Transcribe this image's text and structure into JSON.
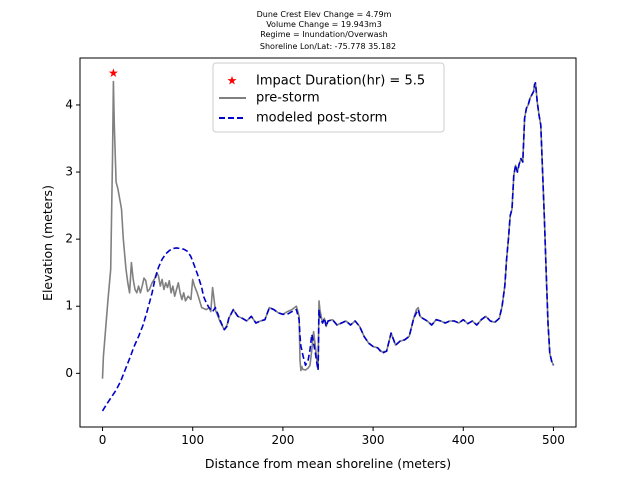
{
  "chart_data": {
    "type": "line",
    "title_lines": [
      "Dune Crest Elev Change = 4.79m",
      "Volume Change = 19.943m3",
      "Regime = Inundation/Overwash",
      "Shoreline Lon/Lat: -75.778 35.182"
    ],
    "xlabel": "Distance from mean shoreline (meters)",
    "ylabel": "Elevation (meters)",
    "xlim": [
      -25,
      525
    ],
    "ylim": [
      -0.8,
      4.7
    ],
    "xticks": [
      0,
      100,
      200,
      300,
      400,
      500
    ],
    "yticks": [
      0,
      1,
      2,
      3,
      4
    ],
    "legend_position": "upper center",
    "legend": [
      {
        "label": "Impact Duration(hr) = 5.5",
        "kind": "marker",
        "color": "#ff0000"
      },
      {
        "label": "pre-storm",
        "kind": "line",
        "color": "#808080"
      },
      {
        "label": "modeled post-storm",
        "kind": "dashed",
        "color": "#0000cc"
      }
    ],
    "marker": {
      "x": 12,
      "y": 4.47,
      "symbol": "star",
      "color": "#ff0000"
    },
    "series": [
      {
        "name": "pre-storm",
        "color": "#808080",
        "style": "solid",
        "x": [
          0,
          1,
          3,
          6,
          9,
          11,
          12,
          13,
          15,
          17,
          19,
          21,
          23,
          26,
          28,
          30,
          32,
          34,
          36,
          38,
          40,
          42,
          44,
          46,
          48,
          50,
          52,
          55,
          58,
          60,
          62,
          64,
          66,
          68,
          70,
          72,
          74,
          76,
          78,
          80,
          82,
          84,
          86,
          88,
          90,
          92,
          95,
          98,
          100,
          102,
          105,
          110,
          115,
          118,
          120,
          122,
          125,
          128,
          130,
          135,
          138,
          140,
          145,
          150,
          155,
          160,
          165,
          170,
          175,
          180,
          185,
          190,
          195,
          200,
          205,
          210,
          215,
          218,
          219,
          220,
          221,
          222,
          225,
          228,
          230,
          232,
          234,
          236,
          238,
          239,
          240,
          241,
          242,
          244,
          246,
          248,
          250,
          255,
          260,
          265,
          270,
          275,
          280,
          285,
          290,
          295,
          300,
          305,
          310,
          315,
          320,
          325,
          330,
          335,
          340,
          345,
          348,
          350,
          352,
          355,
          360,
          365,
          370,
          375,
          380,
          385,
          390,
          395,
          400,
          405,
          410,
          415,
          420,
          425,
          430,
          435,
          440,
          443,
          446,
          448,
          450,
          452,
          454,
          456,
          458,
          460,
          462,
          464,
          466,
          468,
          470,
          472,
          474,
          476,
          478,
          479,
          480,
          481,
          482,
          484,
          486,
          488,
          490,
          492,
          494,
          496,
          498,
          500
        ],
        "values": [
          -0.08,
          0.25,
          0.6,
          1.1,
          1.55,
          3.2,
          4.35,
          3.7,
          2.85,
          2.75,
          2.6,
          2.45,
          2.0,
          1.55,
          1.35,
          1.2,
          1.65,
          1.4,
          1.25,
          1.2,
          1.3,
          1.2,
          1.3,
          1.42,
          1.38,
          1.22,
          1.25,
          1.35,
          1.42,
          1.5,
          1.45,
          1.3,
          1.4,
          1.25,
          1.35,
          1.28,
          1.38,
          1.2,
          1.3,
          1.15,
          1.25,
          1.35,
          1.2,
          1.1,
          1.2,
          1.08,
          1.15,
          1.1,
          1.4,
          1.3,
          1.2,
          0.98,
          0.95,
          0.98,
          0.92,
          1.28,
          0.95,
          0.85,
          0.78,
          0.65,
          0.72,
          0.82,
          0.95,
          0.85,
          0.82,
          0.78,
          0.85,
          0.75,
          0.78,
          0.8,
          0.98,
          0.95,
          0.9,
          0.88,
          0.92,
          0.95,
          1.0,
          0.85,
          0.2,
          0.04,
          0.1,
          0.06,
          0.05,
          0.08,
          0.12,
          0.35,
          0.62,
          0.4,
          0.15,
          0.06,
          1.08,
          0.95,
          0.88,
          0.75,
          0.82,
          0.7,
          0.78,
          0.8,
          0.72,
          0.75,
          0.78,
          0.72,
          0.78,
          0.7,
          0.55,
          0.45,
          0.4,
          0.38,
          0.32,
          0.33,
          0.6,
          0.42,
          0.48,
          0.5,
          0.55,
          0.82,
          0.95,
          0.98,
          0.85,
          0.82,
          0.78,
          0.72,
          0.8,
          0.78,
          0.75,
          0.78,
          0.78,
          0.75,
          0.8,
          0.74,
          0.78,
          0.72,
          0.8,
          0.85,
          0.78,
          0.76,
          0.82,
          1.0,
          1.3,
          1.7,
          2.0,
          2.35,
          2.45,
          2.95,
          3.1,
          3.0,
          3.12,
          3.2,
          3.15,
          3.8,
          3.95,
          4.0,
          4.1,
          4.15,
          4.2,
          4.3,
          4.33,
          4.2,
          4.05,
          3.85,
          3.7,
          3.0,
          2.3,
          1.5,
          0.75,
          0.3,
          0.18,
          0.12
        ]
      },
      {
        "name": "modeled post-storm",
        "color": "#0000cc",
        "style": "dashed",
        "x": [
          0,
          5,
          10,
          15,
          20,
          25,
          30,
          35,
          40,
          45,
          50,
          55,
          58,
          62,
          66,
          70,
          74,
          78,
          82,
          86,
          90,
          94,
          98,
          102,
          106,
          110,
          112,
          115,
          118,
          120,
          122,
          125,
          128,
          130,
          135,
          138,
          140,
          145,
          150,
          155,
          160,
          165,
          170,
          175,
          180,
          185,
          190,
          195,
          200,
          205,
          210,
          215,
          218,
          219,
          220,
          221,
          222,
          225,
          228,
          230,
          232,
          234,
          236,
          238,
          239,
          240,
          241,
          242,
          244,
          246,
          248,
          250,
          255,
          260,
          265,
          270,
          275,
          280,
          285,
          290,
          295,
          300,
          305,
          310,
          315,
          320,
          325,
          330,
          335,
          340,
          345,
          348,
          350,
          352,
          355,
          360,
          365,
          370,
          375,
          380,
          385,
          390,
          395,
          400,
          405,
          410,
          415,
          420,
          425,
          430,
          435,
          440,
          443,
          446,
          448,
          450,
          452,
          454,
          456,
          458,
          460,
          462,
          464,
          466,
          468,
          470,
          472,
          474,
          476,
          478,
          479,
          480,
          481,
          482,
          484,
          486,
          488,
          490,
          492,
          494,
          496,
          498,
          500
        ],
        "values": [
          -0.56,
          -0.45,
          -0.35,
          -0.25,
          -0.12,
          0.05,
          0.22,
          0.4,
          0.55,
          0.72,
          0.95,
          1.2,
          1.4,
          1.58,
          1.7,
          1.78,
          1.83,
          1.86,
          1.87,
          1.86,
          1.85,
          1.82,
          1.74,
          1.6,
          1.45,
          1.28,
          1.15,
          1.05,
          0.98,
          0.95,
          0.92,
          0.98,
          0.88,
          0.8,
          0.65,
          0.7,
          0.82,
          0.95,
          0.85,
          0.82,
          0.78,
          0.85,
          0.75,
          0.78,
          0.8,
          0.98,
          0.95,
          0.9,
          0.88,
          0.88,
          0.92,
          0.95,
          0.8,
          0.55,
          0.4,
          0.35,
          0.28,
          0.12,
          0.2,
          0.35,
          0.58,
          0.45,
          0.3,
          0.12,
          0.05,
          0.95,
          0.85,
          0.8,
          0.75,
          0.82,
          0.7,
          0.78,
          0.8,
          0.72,
          0.75,
          0.78,
          0.72,
          0.78,
          0.7,
          0.55,
          0.45,
          0.4,
          0.38,
          0.3,
          0.33,
          0.6,
          0.42,
          0.48,
          0.5,
          0.55,
          0.82,
          0.9,
          0.95,
          0.85,
          0.82,
          0.78,
          0.72,
          0.8,
          0.78,
          0.75,
          0.78,
          0.78,
          0.75,
          0.8,
          0.74,
          0.78,
          0.72,
          0.8,
          0.85,
          0.78,
          0.76,
          0.82,
          1.0,
          1.3,
          1.7,
          2.0,
          2.35,
          2.45,
          2.95,
          3.1,
          3.0,
          3.12,
          3.2,
          3.15,
          3.8,
          3.95,
          4.0,
          4.1,
          4.15,
          4.2,
          4.3,
          4.33,
          4.2,
          4.05,
          3.85,
          3.7,
          3.0,
          2.3,
          1.5,
          0.75,
          0.3,
          0.18,
          0.12
        ]
      }
    ]
  }
}
